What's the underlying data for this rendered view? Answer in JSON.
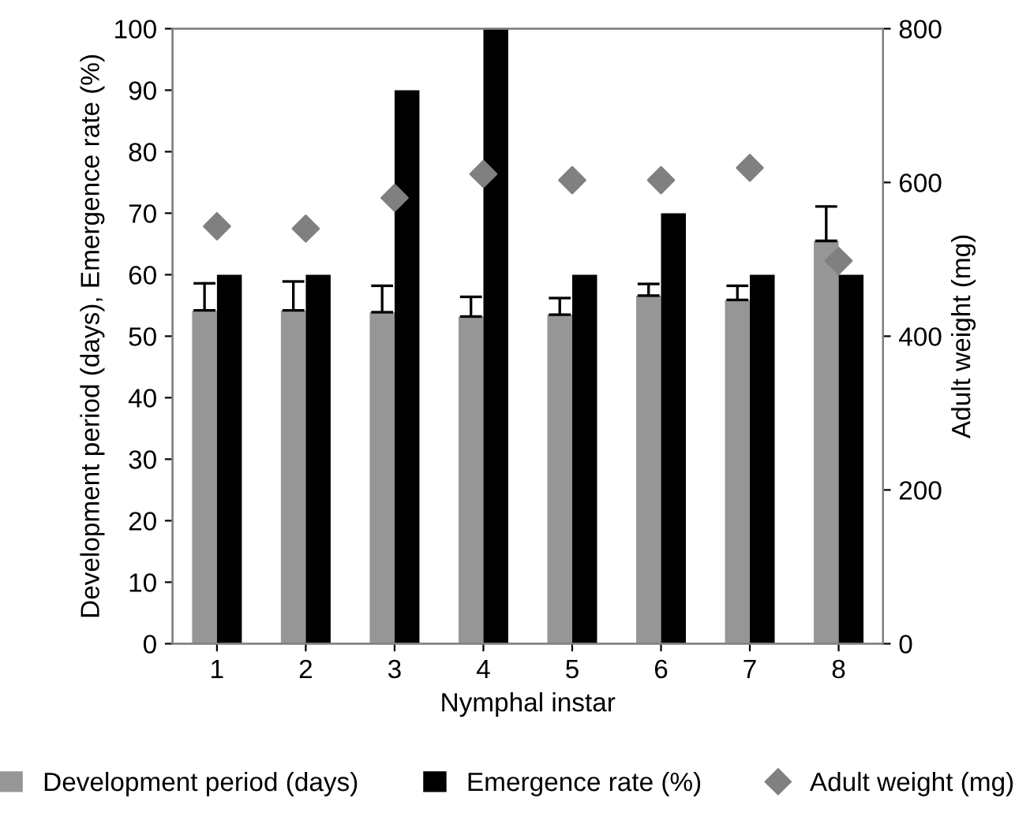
{
  "chart_data": {
    "type": "bar",
    "xlabel": "Nymphal instar",
    "ylabel": "Development period (days), Emergence rate (%)",
    "y2label": "Adult weight (mg)",
    "categories": [
      "1",
      "2",
      "3",
      "4",
      "5",
      "6",
      "7",
      "8"
    ],
    "series": [
      {
        "name": "Development period (days)",
        "color": "#969696",
        "values": [
          54.2,
          54.2,
          53.9,
          53.2,
          53.5,
          56.6,
          55.9,
          65.5
        ],
        "errors": [
          [
            54.2,
            58.6
          ],
          [
            54.2,
            58.9
          ],
          [
            53.9,
            58.2
          ],
          [
            53.2,
            56.4
          ],
          [
            53.5,
            56.2
          ],
          [
            56.6,
            58.5
          ],
          [
            55.9,
            58.2
          ],
          [
            65.5,
            71.1
          ]
        ]
      },
      {
        "name": "Emergence rate (%)",
        "color": "#000000",
        "values": [
          60,
          60,
          90,
          100,
          60,
          70,
          60,
          60
        ]
      },
      {
        "name": "Adult weight (mg)",
        "type": "scatter",
        "axis": "y2",
        "marker": "diamond",
        "color": "#808080",
        "values": [
          543,
          540,
          580,
          611,
          603,
          603,
          619,
          498
        ]
      }
    ],
    "ylim": [
      0,
      100
    ],
    "yticks": [
      0,
      10,
      20,
      30,
      40,
      50,
      60,
      70,
      80,
      90,
      100
    ],
    "y2lim": [
      0,
      800
    ],
    "y2ticks": [
      0,
      200,
      400,
      600,
      800
    ],
    "grid": false,
    "legend": "bottom"
  }
}
